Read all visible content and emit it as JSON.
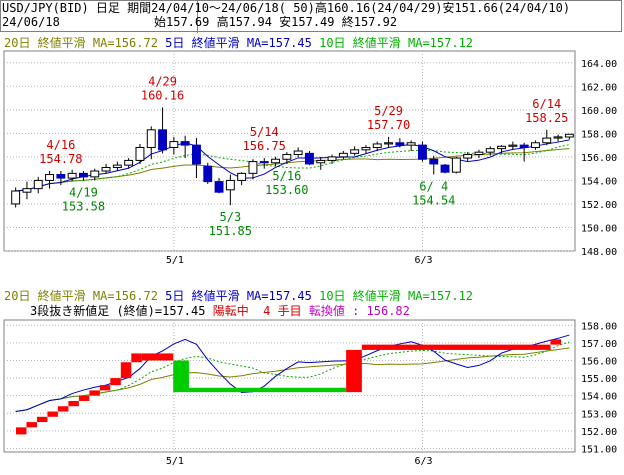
{
  "header": {
    "line1": "USD/JPY(BID) 日足 期間24/04/10～24/06/18( 50)高160.16(24/04/29)安151.66(24/04/10)",
    "date": "24/06/18",
    "ohlc": "始157.69 高157.94 安157.49 終157.92"
  },
  "top_legend": {
    "ma20": "20日 終値平滑 MA=156.72",
    "ma5": "5日 終値平滑 MA=157.45",
    "ma10": "10日 終値平滑 MA=157.12"
  },
  "bottom_legend": {
    "ma20": "20日 終値平滑 MA=156.72",
    "ma5": "5日 終値平滑 MA=157.45",
    "ma10": "10日 終値平滑 MA=157.12"
  },
  "status": {
    "prefix": "3段抜き新値足 (終値)=157.45 ",
    "state": "陽転中",
    "count": "  4 手目 ",
    "reversal": "転換値 : 156.82"
  },
  "colors": {
    "up_candle": "#ffffff",
    "down_candle": "#0000c0",
    "ma20": "#808000",
    "ma5": "#0000c0",
    "ma10": "#00b000",
    "nv_up": "#ff0000",
    "nv_down": "#00cc00",
    "grid": "#b4b4b4"
  },
  "chart_data": [
    {
      "type": "candlestick",
      "y_ticks": [
        "148.00",
        "150.00",
        "152.00",
        "154.00",
        "156.00",
        "158.00",
        "160.00",
        "162.00",
        "164.00"
      ],
      "ylim": [
        148,
        165
      ],
      "x_ticks": [
        {
          "label": "5/1",
          "index": 14
        },
        {
          "label": "6/3",
          "index": 36
        }
      ],
      "candles": [
        {
          "o": 152.0,
          "h": 153.4,
          "l": 151.7,
          "c": 153.1
        },
        {
          "o": 153.0,
          "h": 153.9,
          "l": 152.4,
          "c": 153.3
        },
        {
          "o": 153.3,
          "h": 154.3,
          "l": 152.9,
          "c": 154.0
        },
        {
          "o": 154.0,
          "h": 154.8,
          "l": 153.3,
          "c": 154.5
        },
        {
          "o": 154.5,
          "h": 154.8,
          "l": 153.6,
          "c": 154.2
        },
        {
          "o": 154.2,
          "h": 154.9,
          "l": 153.9,
          "c": 154.6
        },
        {
          "o": 154.6,
          "h": 154.8,
          "l": 154.0,
          "c": 154.3
        },
        {
          "o": 154.3,
          "h": 155.0,
          "l": 154.0,
          "c": 154.8
        },
        {
          "o": 154.8,
          "h": 155.4,
          "l": 154.6,
          "c": 155.1
        },
        {
          "o": 155.1,
          "h": 155.6,
          "l": 154.8,
          "c": 155.3
        },
        {
          "o": 155.3,
          "h": 155.9,
          "l": 155.0,
          "c": 155.7
        },
        {
          "o": 155.7,
          "h": 157.1,
          "l": 155.4,
          "c": 156.8
        },
        {
          "o": 156.8,
          "h": 158.6,
          "l": 155.8,
          "c": 158.3
        },
        {
          "o": 158.3,
          "h": 160.2,
          "l": 156.3,
          "c": 156.6
        },
        {
          "o": 156.8,
          "h": 157.7,
          "l": 156.2,
          "c": 157.3
        },
        {
          "o": 157.3,
          "h": 157.8,
          "l": 155.9,
          "c": 157.0
        },
        {
          "o": 157.0,
          "h": 157.6,
          "l": 154.2,
          "c": 155.4
        },
        {
          "o": 155.2,
          "h": 155.5,
          "l": 153.7,
          "c": 153.9
        },
        {
          "o": 153.9,
          "h": 154.2,
          "l": 152.9,
          "c": 153.0
        },
        {
          "o": 153.2,
          "h": 154.5,
          "l": 151.9,
          "c": 154.0
        },
        {
          "o": 154.0,
          "h": 154.7,
          "l": 153.6,
          "c": 154.6
        },
        {
          "o": 154.6,
          "h": 155.8,
          "l": 154.1,
          "c": 155.6
        },
        {
          "o": 155.6,
          "h": 155.9,
          "l": 155.0,
          "c": 155.5
        },
        {
          "o": 155.5,
          "h": 156.0,
          "l": 155.2,
          "c": 155.8
        },
        {
          "o": 155.8,
          "h": 156.4,
          "l": 155.4,
          "c": 156.2
        },
        {
          "o": 156.2,
          "h": 156.8,
          "l": 156.0,
          "c": 156.5
        },
        {
          "o": 156.3,
          "h": 156.5,
          "l": 155.3,
          "c": 155.4
        },
        {
          "o": 155.5,
          "h": 156.0,
          "l": 154.9,
          "c": 155.7
        },
        {
          "o": 155.7,
          "h": 156.2,
          "l": 155.4,
          "c": 156.0
        },
        {
          "o": 156.0,
          "h": 156.5,
          "l": 155.8,
          "c": 156.3
        },
        {
          "o": 156.3,
          "h": 156.9,
          "l": 156.1,
          "c": 156.6
        },
        {
          "o": 156.6,
          "h": 157.0,
          "l": 156.3,
          "c": 156.8
        },
        {
          "o": 156.8,
          "h": 157.3,
          "l": 156.5,
          "c": 157.1
        },
        {
          "o": 157.1,
          "h": 157.7,
          "l": 156.8,
          "c": 157.2
        },
        {
          "o": 157.2,
          "h": 157.6,
          "l": 156.8,
          "c": 157.0
        },
        {
          "o": 157.0,
          "h": 157.4,
          "l": 156.5,
          "c": 157.2
        },
        {
          "o": 157.0,
          "h": 157.3,
          "l": 155.6,
          "c": 155.8
        },
        {
          "o": 155.8,
          "h": 156.1,
          "l": 154.5,
          "c": 155.4
        },
        {
          "o": 155.3,
          "h": 155.4,
          "l": 154.6,
          "c": 154.7
        },
        {
          "o": 154.7,
          "h": 156.0,
          "l": 154.6,
          "c": 155.9
        },
        {
          "o": 155.9,
          "h": 156.4,
          "l": 155.6,
          "c": 156.2
        },
        {
          "o": 156.2,
          "h": 156.6,
          "l": 155.9,
          "c": 156.4
        },
        {
          "o": 156.4,
          "h": 156.9,
          "l": 156.1,
          "c": 156.7
        },
        {
          "o": 156.7,
          "h": 157.0,
          "l": 156.3,
          "c": 156.9
        },
        {
          "o": 156.9,
          "h": 157.3,
          "l": 156.6,
          "c": 157.0
        },
        {
          "o": 157.0,
          "h": 157.2,
          "l": 155.6,
          "c": 156.8
        },
        {
          "o": 156.8,
          "h": 157.4,
          "l": 156.6,
          "c": 157.2
        },
        {
          "o": 157.2,
          "h": 158.3,
          "l": 157.0,
          "c": 157.6
        },
        {
          "o": 157.6,
          "h": 157.9,
          "l": 157.3,
          "c": 157.7
        },
        {
          "o": 157.69,
          "h": 157.94,
          "l": 157.49,
          "c": 157.92
        }
      ],
      "annotations": [
        {
          "type": "high",
          "date": "4/29",
          "value": "160.16",
          "index": 13
        },
        {
          "type": "high",
          "date": "4/16",
          "value": "154.78",
          "index": 4
        },
        {
          "type": "high",
          "date": "5/14",
          "value": "156.75",
          "index": 22
        },
        {
          "type": "high",
          "date": "5/29",
          "value": "157.70",
          "index": 33
        },
        {
          "type": "high",
          "date": "6/14",
          "value": "158.25",
          "index": 47
        },
        {
          "type": "low",
          "date": "4/19",
          "value": "153.58",
          "index": 6
        },
        {
          "type": "low",
          "date": "5/3",
          "value": "151.85",
          "index": 19
        },
        {
          "type": "low",
          "date": "5/16",
          "value": "153.60",
          "index": 24
        },
        {
          "type": "low",
          "date": "6/ 4",
          "value": "154.54",
          "index": 37
        }
      ]
    },
    {
      "type": "new-value-bars",
      "y_ticks": [
        "151.00",
        "152.00",
        "153.00",
        "154.00",
        "155.00",
        "156.00",
        "157.00",
        "158.00"
      ],
      "ylim": [
        150.8,
        158.3
      ],
      "x_ticks": [
        {
          "label": "5/1",
          "index": 14
        },
        {
          "label": "6/3",
          "index": 36
        }
      ],
      "bricks": [
        {
          "lo": 151.8,
          "hi": 152.2,
          "up": true
        },
        {
          "lo": 152.2,
          "hi": 152.5,
          "up": true
        },
        {
          "lo": 152.5,
          "hi": 152.8,
          "up": true
        },
        {
          "lo": 152.8,
          "hi": 153.1,
          "up": true
        },
        {
          "lo": 153.1,
          "hi": 153.4,
          "up": true
        },
        {
          "lo": 153.4,
          "hi": 153.7,
          "up": true
        },
        {
          "lo": 153.7,
          "hi": 154.0,
          "up": true
        },
        {
          "lo": 154.0,
          "hi": 154.3,
          "up": true
        },
        {
          "lo": 154.3,
          "hi": 154.6,
          "up": true
        },
        {
          "lo": 154.6,
          "hi": 155.0,
          "up": true
        },
        {
          "lo": 155.0,
          "hi": 155.9,
          "up": true
        },
        {
          "lo": 155.9,
          "hi": 156.4,
          "up": true
        },
        {
          "lo": 156.0,
          "hi": 156.4,
          "up": true
        },
        {
          "lo": 154.2,
          "hi": 156.0,
          "up": false
        },
        {
          "lo": 154.2,
          "hi": 154.45,
          "up": false
        },
        {
          "lo": 154.2,
          "hi": 156.6,
          "up": true
        },
        {
          "lo": 156.6,
          "hi": 156.9,
          "up": true
        },
        {
          "lo": 156.9,
          "hi": 157.2,
          "up": true
        }
      ]
    }
  ]
}
